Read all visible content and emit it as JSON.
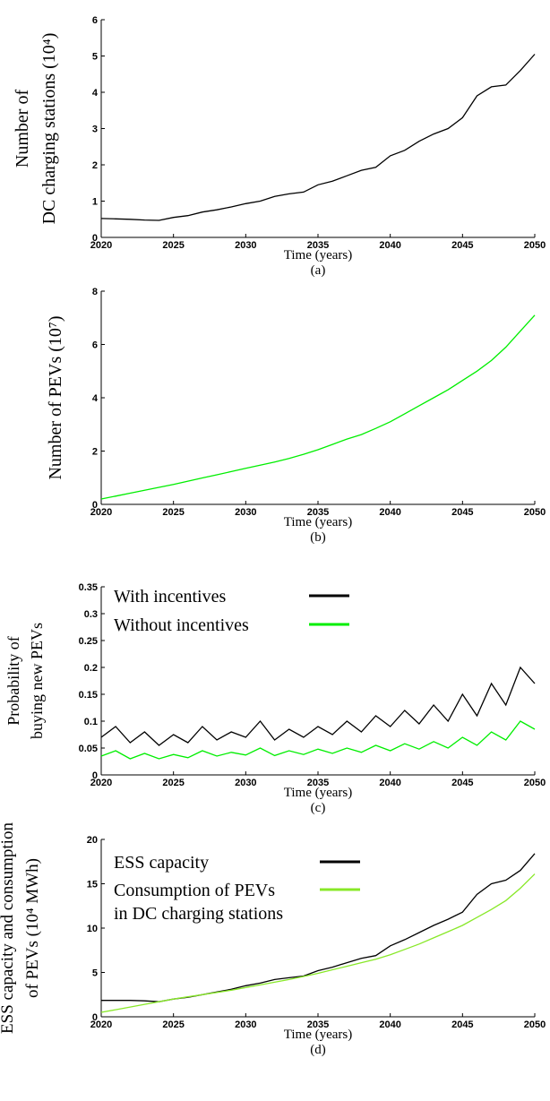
{
  "chart_data": [
    {
      "type": "line",
      "y_label": "Number of\nDC charging stations (10⁴)",
      "x_label": "Time (years)",
      "caption": "(a)",
      "x": [
        2020,
        2021,
        2022,
        2023,
        2024,
        2025,
        2026,
        2027,
        2028,
        2029,
        2030,
        2031,
        2032,
        2033,
        2034,
        2035,
        2036,
        2037,
        2038,
        2039,
        2040,
        2041,
        2042,
        2043,
        2044,
        2045,
        2046,
        2047,
        2048,
        2049,
        2050
      ],
      "values": [
        0.52,
        0.51,
        0.5,
        0.48,
        0.47,
        0.55,
        0.6,
        0.7,
        0.76,
        0.84,
        0.93,
        1.0,
        1.13,
        1.2,
        1.25,
        1.45,
        1.55,
        1.7,
        1.85,
        1.93,
        2.25,
        2.4,
        2.65,
        2.85,
        3.0,
        3.3,
        3.9,
        4.15,
        4.2,
        4.6,
        5.05
      ],
      "color": "#000000",
      "xlim": [
        2020,
        2050
      ],
      "xticks": [
        2020,
        2025,
        2030,
        2035,
        2040,
        2045,
        2050
      ],
      "ylim": [
        0,
        6
      ],
      "yticks": [
        0,
        1,
        2,
        3,
        4,
        5,
        6
      ]
    },
    {
      "type": "line",
      "y_label": "Number of PEVs (10⁷)",
      "x_label": "Time (years)",
      "caption": "(b)",
      "x": [
        2020,
        2021,
        2022,
        2023,
        2024,
        2025,
        2026,
        2027,
        2028,
        2029,
        2030,
        2031,
        2032,
        2033,
        2034,
        2035,
        2036,
        2037,
        2038,
        2039,
        2040,
        2041,
        2042,
        2043,
        2044,
        2045,
        2046,
        2047,
        2048,
        2049,
        2050
      ],
      "values": [
        0.2,
        0.31,
        0.42,
        0.53,
        0.64,
        0.75,
        0.87,
        0.99,
        1.11,
        1.23,
        1.35,
        1.47,
        1.59,
        1.72,
        1.88,
        2.05,
        2.25,
        2.45,
        2.62,
        2.85,
        3.1,
        3.4,
        3.7,
        4.0,
        4.3,
        4.65,
        5.0,
        5.4,
        5.9,
        6.5,
        7.1
      ],
      "color": "#00ee00",
      "xlim": [
        2020,
        2050
      ],
      "xticks": [
        2020,
        2025,
        2030,
        2035,
        2040,
        2045,
        2050
      ],
      "ylim": [
        0,
        8
      ],
      "yticks": [
        0,
        2,
        4,
        6,
        8
      ]
    },
    {
      "type": "line",
      "y_label": "Probability of\nbuying new PEVs",
      "x_label": "Time (years)",
      "caption": "(c)",
      "legend": "upper left",
      "x": [
        2020,
        2021,
        2022,
        2023,
        2024,
        2025,
        2026,
        2027,
        2028,
        2029,
        2030,
        2031,
        2032,
        2033,
        2034,
        2035,
        2036,
        2037,
        2038,
        2039,
        2040,
        2041,
        2042,
        2043,
        2044,
        2045,
        2046,
        2047,
        2048,
        2049,
        2050
      ],
      "series": [
        {
          "name": "With incentives",
          "color": "#000000",
          "values": [
            0.07,
            0.09,
            0.06,
            0.08,
            0.055,
            0.075,
            0.06,
            0.09,
            0.065,
            0.08,
            0.07,
            0.1,
            0.065,
            0.085,
            0.07,
            0.09,
            0.075,
            0.1,
            0.08,
            0.11,
            0.09,
            0.12,
            0.095,
            0.13,
            0.1,
            0.15,
            0.11,
            0.17,
            0.13,
            0.2,
            0.17
          ]
        },
        {
          "name": "Without incentives",
          "color": "#00ee00",
          "values": [
            0.035,
            0.045,
            0.03,
            0.04,
            0.03,
            0.038,
            0.032,
            0.045,
            0.035,
            0.042,
            0.037,
            0.05,
            0.036,
            0.045,
            0.038,
            0.048,
            0.04,
            0.05,
            0.042,
            0.055,
            0.045,
            0.058,
            0.048,
            0.062,
            0.05,
            0.07,
            0.055,
            0.08,
            0.065,
            0.1,
            0.085
          ]
        }
      ],
      "xlim": [
        2020,
        2050
      ],
      "xticks": [
        2020,
        2025,
        2030,
        2035,
        2040,
        2045,
        2050
      ],
      "ylim": [
        0,
        0.35
      ],
      "yticks": [
        0,
        0.05,
        0.1,
        0.15,
        0.2,
        0.25,
        0.3,
        0.35
      ]
    },
    {
      "type": "line",
      "y_label": "ESS capacity and consumption\nof PEVs (10⁴ MWh)",
      "x_label": "Time (years)",
      "caption": "(d)",
      "legend": "upper left",
      "x": [
        2020,
        2021,
        2022,
        2023,
        2024,
        2025,
        2026,
        2027,
        2028,
        2029,
        2030,
        2031,
        2032,
        2033,
        2034,
        2035,
        2036,
        2037,
        2038,
        2039,
        2040,
        2041,
        2042,
        2043,
        2044,
        2045,
        2046,
        2047,
        2048,
        2049,
        2050
      ],
      "series": [
        {
          "name": "ESS capacity",
          "color": "#000000",
          "values": [
            1.85,
            1.85,
            1.85,
            1.8,
            1.7,
            2.0,
            2.2,
            2.5,
            2.8,
            3.1,
            3.5,
            3.8,
            4.2,
            4.4,
            4.6,
            5.2,
            5.6,
            6.1,
            6.6,
            6.9,
            8.0,
            8.7,
            9.5,
            10.3,
            11.0,
            11.8,
            13.8,
            15.0,
            15.4,
            16.5,
            18.4
          ]
        },
        {
          "name": "Consumption of PEVs\nin DC charging stations",
          "color": "#88e828",
          "values": [
            0.5,
            0.8,
            1.1,
            1.4,
            1.7,
            2.0,
            2.25,
            2.5,
            2.75,
            3.0,
            3.3,
            3.6,
            3.9,
            4.2,
            4.55,
            4.9,
            5.3,
            5.7,
            6.1,
            6.5,
            7.0,
            7.6,
            8.2,
            8.9,
            9.6,
            10.3,
            11.2,
            12.1,
            13.1,
            14.5,
            16.1
          ]
        }
      ],
      "xlim": [
        2020,
        2050
      ],
      "xticks": [
        2020,
        2025,
        2030,
        2035,
        2040,
        2045,
        2050
      ],
      "ylim": [
        0,
        20
      ],
      "yticks": [
        0,
        5,
        10,
        15,
        20
      ]
    }
  ]
}
